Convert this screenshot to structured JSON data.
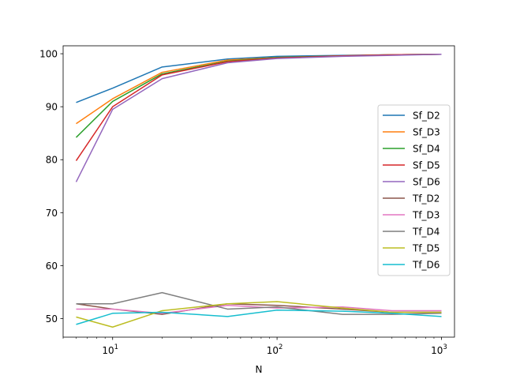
{
  "chart_data": {
    "type": "line",
    "title": "",
    "xlabel": "N",
    "ylabel": "",
    "xscale": "log",
    "xlim": [
      5,
      1200
    ],
    "ylim": [
      46.5,
      101.5
    ],
    "grid": false,
    "legend_position": "center-right",
    "x": [
      6,
      10,
      20,
      50,
      100,
      250,
      500,
      1000
    ],
    "x_ticks": [
      {
        "value": 10,
        "base": "10",
        "exp": "1"
      },
      {
        "value": 100,
        "base": "10",
        "exp": "2"
      },
      {
        "value": 1000,
        "base": "10",
        "exp": "3"
      }
    ],
    "y_ticks": [
      50,
      60,
      70,
      80,
      90,
      100
    ],
    "series": [
      {
        "name": "Sf_D2",
        "color": "#1f77b4",
        "values": [
          90.8,
          93.5,
          97.5,
          99.0,
          99.5,
          99.7,
          99.8,
          99.9
        ]
      },
      {
        "name": "Sf_D3",
        "color": "#ff7f0e",
        "values": [
          86.8,
          91.5,
          96.5,
          98.8,
          99.3,
          99.6,
          99.8,
          99.9
        ]
      },
      {
        "name": "Sf_D4",
        "color": "#2ca02c",
        "values": [
          84.2,
          91.0,
          96.2,
          98.6,
          99.3,
          99.6,
          99.8,
          99.9
        ]
      },
      {
        "name": "Sf_D5",
        "color": "#d62728",
        "values": [
          79.8,
          90.0,
          96.0,
          98.5,
          99.2,
          99.6,
          99.8,
          99.9
        ]
      },
      {
        "name": "Sf_D6",
        "color": "#9467bd",
        "values": [
          75.8,
          89.5,
          95.3,
          98.3,
          99.1,
          99.5,
          99.7,
          99.9
        ]
      },
      {
        "name": "Tf_D2",
        "color": "#8c564b",
        "values": [
          52.8,
          51.8,
          50.8,
          52.8,
          52.5,
          51.8,
          51.2,
          51.2
        ]
      },
      {
        "name": "Tf_D3",
        "color": "#e377c2",
        "values": [
          51.8,
          51.8,
          51.0,
          52.5,
          52.0,
          52.2,
          51.5,
          51.5
        ]
      },
      {
        "name": "Tf_D4",
        "color": "#7f7f7f",
        "values": [
          52.8,
          52.8,
          54.9,
          51.8,
          52.2,
          50.8,
          50.8,
          51.0
        ]
      },
      {
        "name": "Tf_D5",
        "color": "#bcbd22",
        "values": [
          50.3,
          48.4,
          51.5,
          52.8,
          53.2,
          52.0,
          51.2,
          51.2
        ]
      },
      {
        "name": "Tf_D6",
        "color": "#17becf",
        "values": [
          48.9,
          51.0,
          51.2,
          50.4,
          51.6,
          51.4,
          51.0,
          50.4
        ]
      }
    ]
  }
}
